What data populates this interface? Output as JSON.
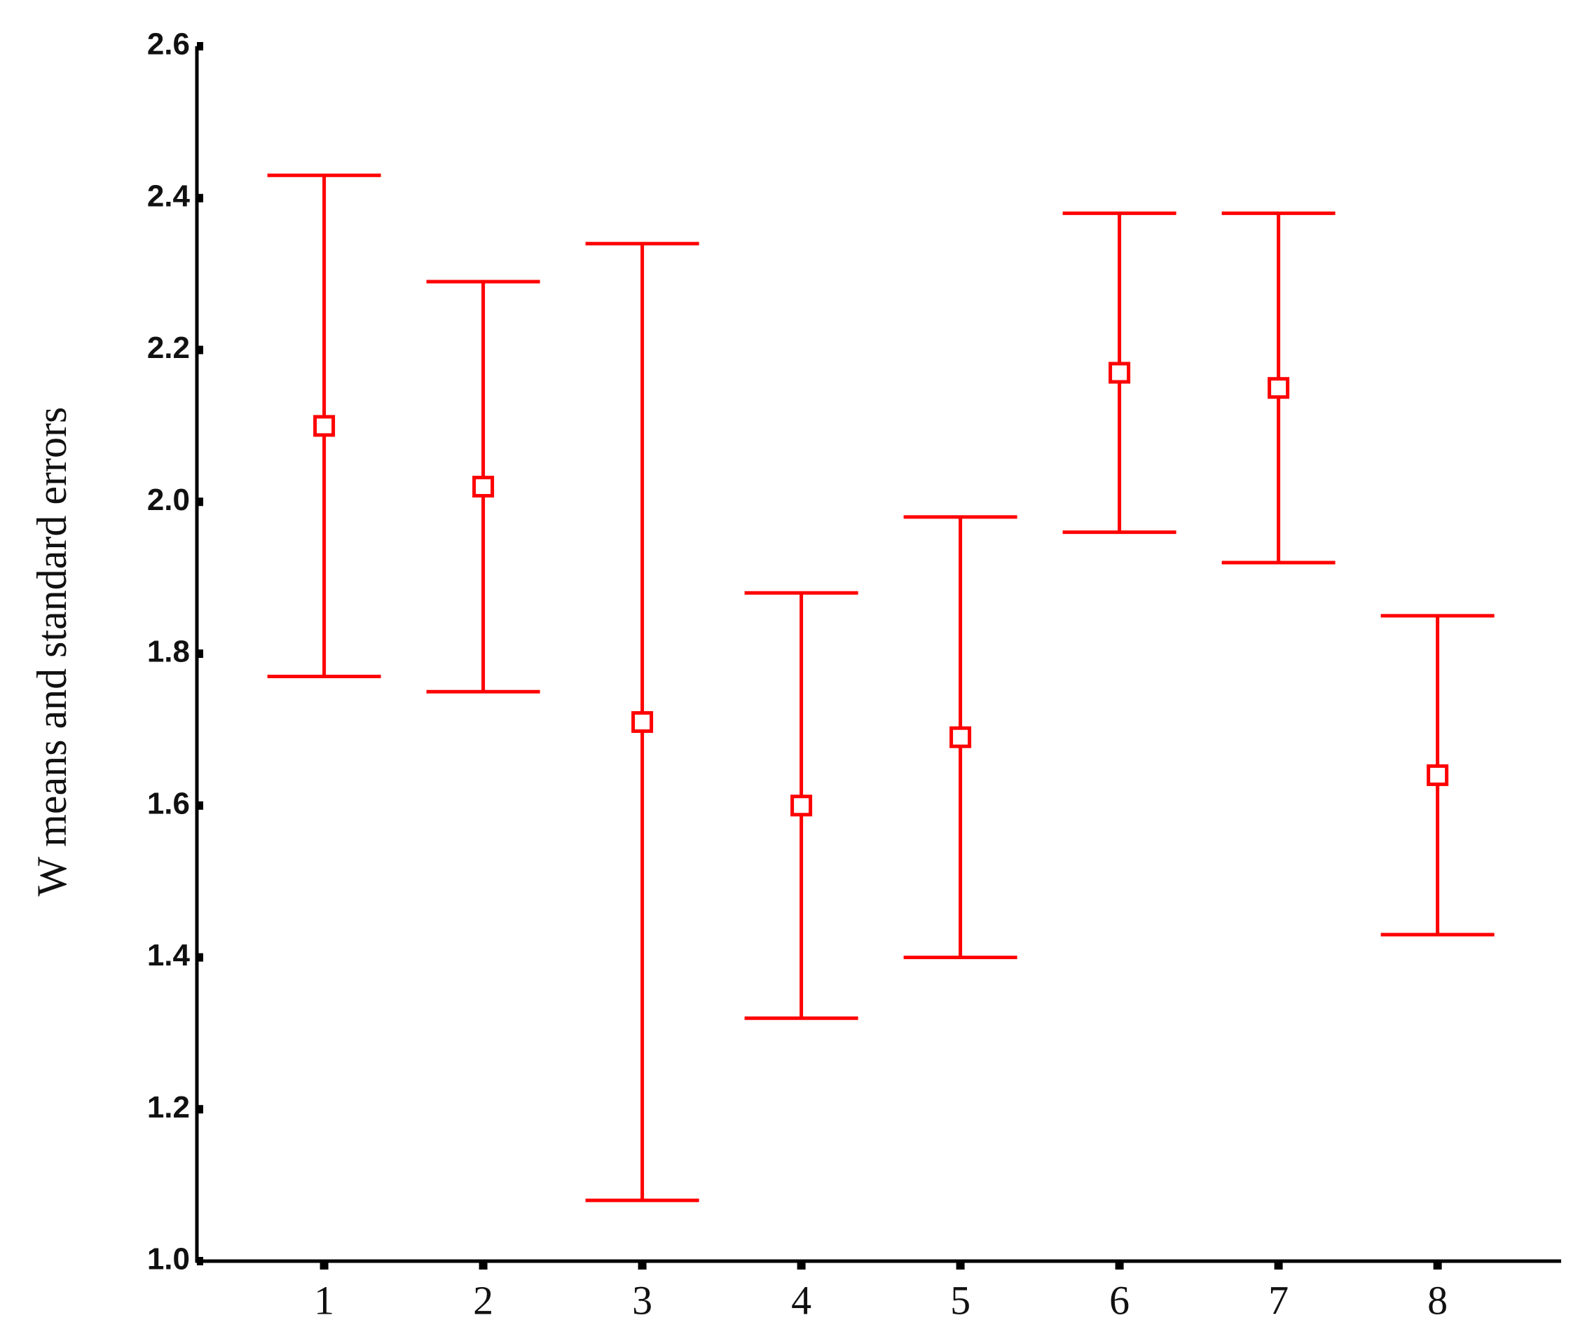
{
  "chart_data": {
    "type": "errorbar",
    "y_label": "W means and standard errors",
    "categories": [
      "1",
      "2",
      "3",
      "4",
      "5",
      "6",
      "7",
      "8"
    ],
    "values": [
      2.1,
      2.02,
      1.71,
      1.6,
      1.69,
      2.17,
      2.15,
      1.64
    ],
    "errors": [
      0.33,
      0.27,
      0.63,
      0.28,
      0.29,
      0.21,
      0.23,
      0.21
    ],
    "color": "#ff0000",
    "ylim": [
      1.0,
      2.6
    ],
    "yticks": [
      {
        "value": 1.0,
        "label": "1.0"
      },
      1.2,
      1.4,
      1.6,
      1.8,
      {
        "value": 2.0,
        "label": "2.0"
      },
      2.2,
      2.4,
      2.6
    ],
    "grid": false
  }
}
